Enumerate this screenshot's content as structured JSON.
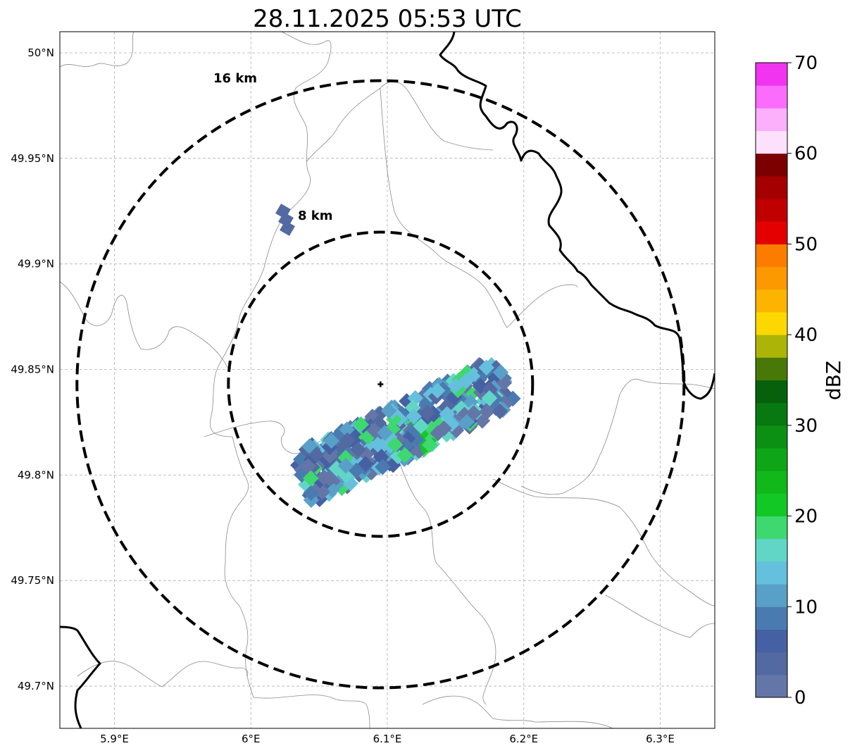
{
  "title": "28.11.2025 05:53 UTC",
  "map": {
    "lon_range": [
      5.86,
      6.34
    ],
    "lat_range": [
      49.68,
      50.01
    ],
    "lon_ticks": [
      {
        "value": 5.9,
        "label": "5.9°E"
      },
      {
        "value": 6.0,
        "label": "6°E"
      },
      {
        "value": 6.1,
        "label": "6.1°E"
      },
      {
        "value": 6.2,
        "label": "6.2°E"
      },
      {
        "value": 6.3,
        "label": "6.3°E"
      }
    ],
    "lat_ticks": [
      {
        "value": 50.0,
        "label": "50°N"
      },
      {
        "value": 49.95,
        "label": "49.95°N"
      },
      {
        "value": 49.9,
        "label": "49.9°N"
      },
      {
        "value": 49.85,
        "label": "49.85°N"
      },
      {
        "value": 49.8,
        "label": "49.8°N"
      },
      {
        "value": 49.75,
        "label": "49.75°N"
      },
      {
        "value": 49.7,
        "label": "49.7°N"
      }
    ],
    "radar_site": {
      "lon": 6.095,
      "lat": 49.843
    },
    "range_rings": [
      {
        "label": "8 km"
      },
      {
        "label": "16 km"
      }
    ]
  },
  "colorbar": {
    "label": "dBZ",
    "min": 0,
    "max": 70,
    "ticks": [
      "0",
      "10",
      "20",
      "30",
      "40",
      "50",
      "60",
      "70"
    ],
    "colors": [
      "#6476a8",
      "#5369a1",
      "#4560a3",
      "#4a7bb0",
      "#58a0c8",
      "#64c0dc",
      "#62d6c6",
      "#3ed870",
      "#12c824",
      "#10b81a",
      "#0ea617",
      "#0b9014",
      "#087810",
      "#06600c",
      "#487808",
      "#acb408",
      "#fcd800",
      "#fcb400",
      "#fc9800",
      "#fc7c00",
      "#e40000",
      "#c00000",
      "#a40000",
      "#7c0000",
      "#fce0fc",
      "#fcb0fc",
      "#fc6cfc",
      "#f034f0"
    ]
  }
}
